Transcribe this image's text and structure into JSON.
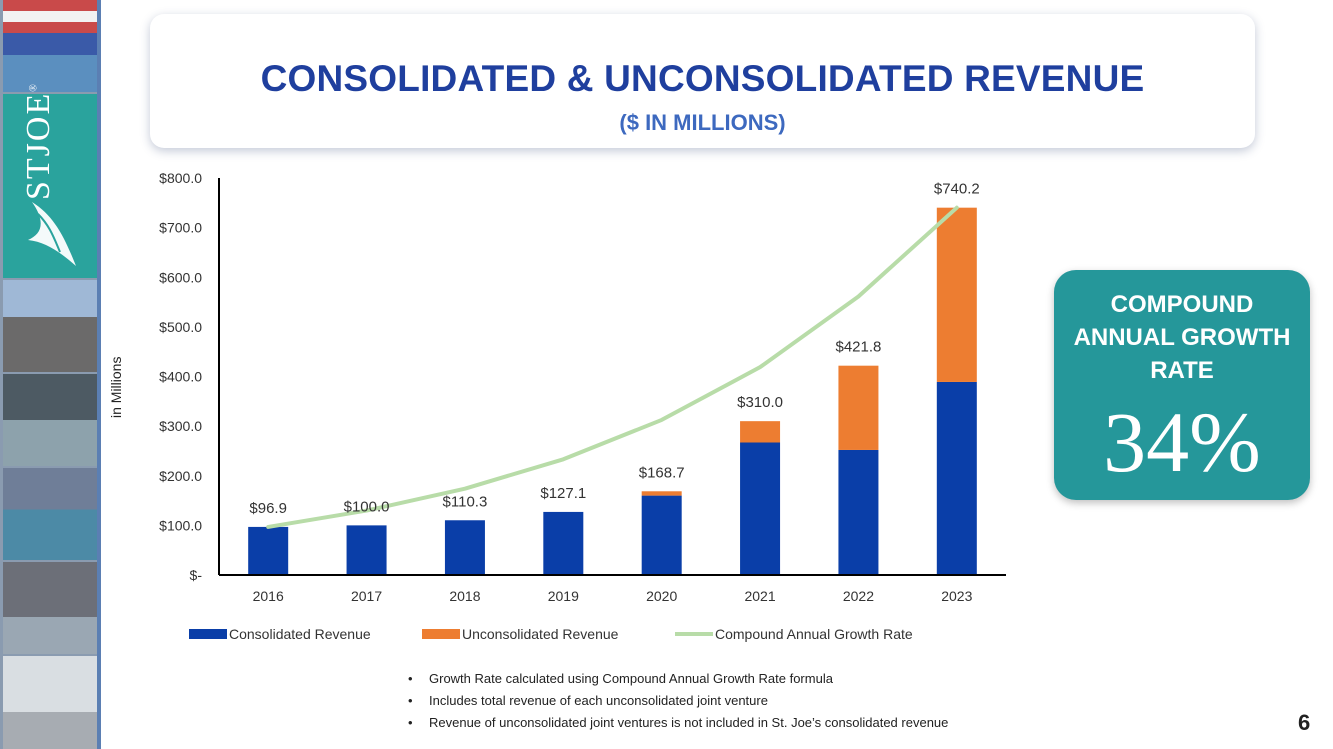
{
  "slide": {
    "title": "CONSOLIDATED & UNCONSOLIDATED REVENUE",
    "subtitle": "($ IN MILLIONS)",
    "page_number": "6",
    "logo_text": "STJOE",
    "logo_registered": "®"
  },
  "cagr": {
    "label": "COMPOUND ANNUAL GROWTH RATE",
    "value": "34%"
  },
  "notes": [
    "Growth Rate calculated using Compound Annual Growth Rate formula",
    "Includes total revenue of each unconsolidated joint venture",
    "Revenue of unconsolidated joint ventures is not included in St. Joe’s consolidated revenue"
  ],
  "bullet_char": "•",
  "colors": {
    "consolidated": "#0a3ea8",
    "unconsolidated": "#ed7d31",
    "growth_line": "#b8dca8",
    "title": "#1f3f9e",
    "subtitle": "#3d69bf",
    "cagr_bg": "#25979a"
  },
  "chart_data": {
    "type": "bar",
    "stacked": true,
    "categories": [
      "2016",
      "2017",
      "2018",
      "2019",
      "2020",
      "2021",
      "2022",
      "2023"
    ],
    "series": [
      {
        "name": "Consolidated Revenue",
        "values": [
          96.9,
          100.0,
          110.3,
          127.1,
          160.0,
          267.0,
          252.0,
          389.0
        ]
      },
      {
        "name": "Unconsolidated Revenue",
        "values": [
          0,
          0,
          0,
          0,
          8.7,
          43.0,
          169.8,
          351.2
        ]
      },
      {
        "name": "Compound Annual Growth Rate",
        "type": "line",
        "values": [
          96.9,
          129.8,
          174.0,
          233.2,
          312.5,
          418.8,
          561.2,
          740.2
        ]
      }
    ],
    "totals_labels": [
      "$96.9",
      "$100.0",
      "$110.3",
      "$127.1",
      "$168.7",
      "$310.0",
      "$421.8",
      "$740.2"
    ],
    "ylim": [
      0,
      800
    ],
    "yticks": [
      0,
      100,
      200,
      300,
      400,
      500,
      600,
      700,
      800
    ],
    "ytick_labels": [
      "$-",
      "$100.0",
      "$200.0",
      "$300.0",
      "$400.0",
      "$500.0",
      "$600.0",
      "$700.0",
      "$800.0"
    ],
    "ylabel": "in Millions",
    "xlabel": "",
    "legend": "bottom",
    "grid": false
  }
}
